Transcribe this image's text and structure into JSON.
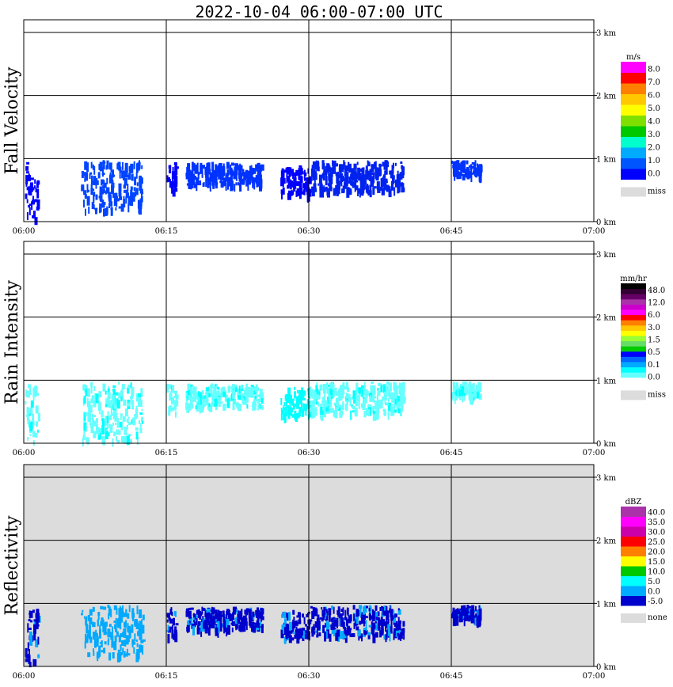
{
  "chart_data": {
    "type": "heatmap",
    "title": "2022-10-04   06:00-07:00 UTC",
    "x_ticks": [
      "06:00",
      "06:15",
      "06:30",
      "06:45",
      "07:00"
    ],
    "x_range_minutes": [
      0,
      60
    ],
    "y_ticks": [
      "0 km",
      "1 km",
      "2 km",
      "3 km"
    ],
    "y_range_km": [
      0,
      3.2
    ],
    "grid": true,
    "panels": [
      {
        "ylabel": "Fall Velocity",
        "background": "#ffffff",
        "colorbar": {
          "unit": "m/s",
          "colors": [
            "#0000ff",
            "#0055ff",
            "#00aaff",
            "#00ffcc",
            "#00c800",
            "#7fe000",
            "#ffff00",
            "#ffc800",
            "#ff8000",
            "#ff0000",
            "#ff00ff"
          ],
          "labels": [
            "0.0",
            "1.0",
            "2.0",
            "3.0",
            "4.0",
            "5.0",
            "6.0",
            "7.0",
            "8.0"
          ],
          "missing_label": "miss",
          "missing_color": "#dcdcdc"
        },
        "echoes": [
          {
            "t": [
              0.1,
              1.5
            ],
            "h": [
              0.05,
              0.95
            ],
            "value_color": "#0000ff"
          },
          {
            "t": [
              6,
              12.5
            ],
            "h": [
              0.2,
              0.98
            ],
            "value_color": "#0044ff"
          },
          {
            "t": [
              15,
              16
            ],
            "h": [
              0.5,
              0.95
            ],
            "value_color": "#0000ff"
          },
          {
            "t": [
              17,
              25
            ],
            "h": [
              0.6,
              0.95
            ],
            "value_color": "#0033ff"
          },
          {
            "t": [
              27,
              30
            ],
            "h": [
              0.45,
              0.9
            ],
            "value_color": "#0000ff"
          },
          {
            "t": [
              30,
              40
            ],
            "h": [
              0.5,
              0.98
            ],
            "value_color": "#0022ee"
          },
          {
            "t": [
              45,
              48
            ],
            "h": [
              0.75,
              0.98
            ],
            "value_color": "#0033ff"
          }
        ]
      },
      {
        "ylabel": "Rain Intensity",
        "background": "#ffffff",
        "colorbar": {
          "unit": "mm/hr",
          "colors": [
            "#ffffff",
            "#66ffff",
            "#00ffff",
            "#00aaff",
            "#0066ff",
            "#0000ff",
            "#00cc00",
            "#66dd66",
            "#99ff33",
            "#ffff00",
            "#ffc800",
            "#ff8000",
            "#ff0000",
            "#ff00ff",
            "#cc00cc",
            "#aa33aa",
            "#660066",
            "#330033",
            "#000000"
          ],
          "labels": [
            "0.0",
            "0.1",
            "0.5",
            "1.5",
            "3.0",
            "6.0",
            "12.0",
            "48.0"
          ],
          "missing_label": "miss",
          "missing_color": "#dcdcdc"
        },
        "echoes": [
          {
            "t": [
              0.1,
              1.5
            ],
            "h": [
              0.02,
              0.95
            ],
            "value_color": "#66ffff"
          },
          {
            "t": [
              6,
              12.5
            ],
            "h": [
              0.05,
              0.98
            ],
            "value_color": "#66ffff"
          },
          {
            "t": [
              15,
              16
            ],
            "h": [
              0.5,
              0.95
            ],
            "value_color": "#66ffff"
          },
          {
            "t": [
              17,
              25
            ],
            "h": [
              0.6,
              0.95
            ],
            "value_color": "#66ffff"
          },
          {
            "t": [
              27,
              30
            ],
            "h": [
              0.45,
              0.9
            ],
            "value_color": "#00ffff"
          },
          {
            "t": [
              30,
              40
            ],
            "h": [
              0.5,
              0.98
            ],
            "value_color": "#66ffff"
          },
          {
            "t": [
              45,
              48
            ],
            "h": [
              0.75,
              0.98
            ],
            "value_color": "#66ffff"
          }
        ]
      },
      {
        "ylabel": "Reflectivity",
        "background": "#dcdcdc",
        "colorbar": {
          "unit": "dBZ",
          "colors": [
            "#0000cc",
            "#00aaff",
            "#00ffff",
            "#00c800",
            "#ffff00",
            "#ff8000",
            "#ff0000",
            "#cc00aa",
            "#ff00ff",
            "#aa33aa"
          ],
          "labels": [
            "-5.0",
            "0.0",
            "5.0",
            "10.0",
            "15.0",
            "20.0",
            "25.0",
            "30.0",
            "35.0",
            "40.0"
          ],
          "missing_label": "none",
          "missing_color": "#dcdcdc"
        },
        "echoes": [
          {
            "t": [
              0.1,
              1.5
            ],
            "h": [
              0.05,
              0.95
            ],
            "value_color": "#0000cc"
          },
          {
            "t": [
              6,
              12.5
            ],
            "h": [
              0.2,
              0.98
            ],
            "value_color": "#00aaff"
          },
          {
            "t": [
              15,
              16
            ],
            "h": [
              0.5,
              0.95
            ],
            "value_color": "#0000cc"
          },
          {
            "t": [
              17,
              25
            ],
            "h": [
              0.6,
              0.95
            ],
            "value_color": "#0000cc"
          },
          {
            "t": [
              27,
              30
            ],
            "h": [
              0.45,
              0.9
            ],
            "value_color": "#0000cc"
          },
          {
            "t": [
              30,
              40
            ],
            "h": [
              0.5,
              0.98
            ],
            "value_color": "#0000cc"
          },
          {
            "t": [
              45,
              48
            ],
            "h": [
              0.75,
              0.98
            ],
            "value_color": "#0000cc"
          }
        ]
      }
    ]
  }
}
